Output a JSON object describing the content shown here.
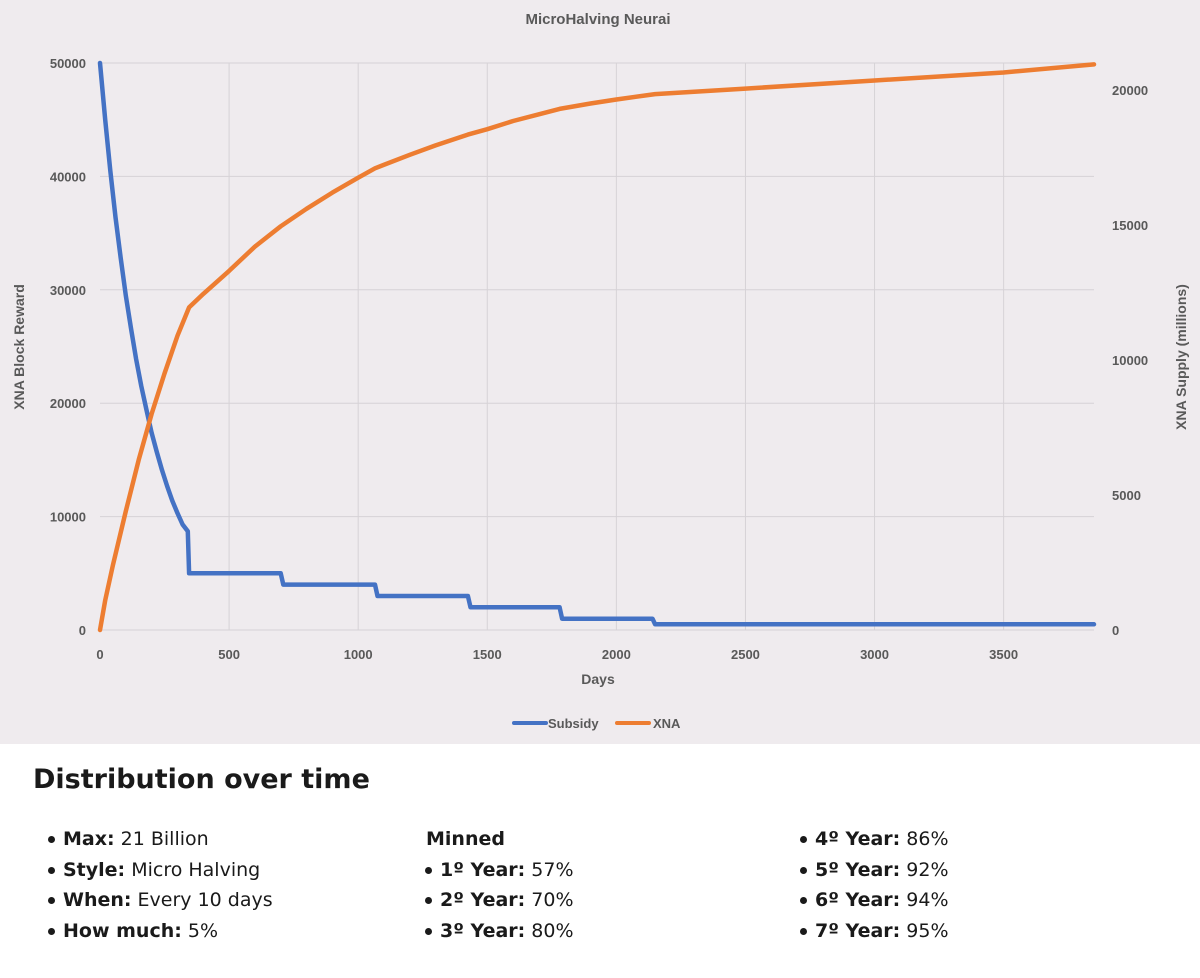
{
  "chart_data": {
    "type": "line",
    "title": "MicroHalving Neurai",
    "xlabel": "Days",
    "ylabel_left": "XNA Block Reward",
    "ylabel_right": "XNA Supply (millions)",
    "xlim": [
      0,
      3850
    ],
    "ylim_left": [
      0,
      50000
    ],
    "ylim_right": [
      0,
      21000
    ],
    "x_ticks": [
      "0",
      "500",
      "1000",
      "1500",
      "2000",
      "2500",
      "3000",
      "3500"
    ],
    "y_ticks_left": [
      "0",
      "10000",
      "20000",
      "30000",
      "40000",
      "50000"
    ],
    "y_ticks_right": [
      "0",
      "5000",
      "10000",
      "15000",
      "20000"
    ],
    "grid": true,
    "legend_position": "bottom",
    "series": [
      {
        "name": "Subsidy",
        "axis": "left",
        "color": "#4472c4",
        "points": [
          [
            0,
            50000
          ],
          [
            20,
            45000
          ],
          [
            40,
            40500
          ],
          [
            60,
            36400
          ],
          [
            80,
            32800
          ],
          [
            100,
            29500
          ],
          [
            120,
            26600
          ],
          [
            140,
            23900
          ],
          [
            160,
            21500
          ],
          [
            180,
            19400
          ],
          [
            200,
            17400
          ],
          [
            220,
            15700
          ],
          [
            240,
            14100
          ],
          [
            260,
            12700
          ],
          [
            280,
            11400
          ],
          [
            300,
            10300
          ],
          [
            320,
            9300
          ],
          [
            340,
            8700
          ],
          [
            345,
            5000
          ],
          [
            700,
            5000
          ],
          [
            710,
            4000
          ],
          [
            1065,
            4000
          ],
          [
            1075,
            3000
          ],
          [
            1425,
            3000
          ],
          [
            1435,
            2000
          ],
          [
            1780,
            2000
          ],
          [
            1790,
            1000
          ],
          [
            2140,
            1000
          ],
          [
            2150,
            500
          ],
          [
            3850,
            500
          ]
        ]
      },
      {
        "name": "XNA",
        "axis": "right",
        "color": "#ed7d31",
        "points": [
          [
            0,
            0
          ],
          [
            20,
            1100
          ],
          [
            50,
            2400
          ],
          [
            100,
            4400
          ],
          [
            150,
            6300
          ],
          [
            200,
            8000
          ],
          [
            250,
            9500
          ],
          [
            300,
            10900
          ],
          [
            345,
            11950
          ],
          [
            400,
            12450
          ],
          [
            500,
            13300
          ],
          [
            600,
            14200
          ],
          [
            700,
            14950
          ],
          [
            800,
            15600
          ],
          [
            900,
            16200
          ],
          [
            1000,
            16750
          ],
          [
            1065,
            17100
          ],
          [
            1200,
            17600
          ],
          [
            1300,
            17950
          ],
          [
            1425,
            18350
          ],
          [
            1500,
            18550
          ],
          [
            1600,
            18850
          ],
          [
            1700,
            19100
          ],
          [
            1780,
            19300
          ],
          [
            1900,
            19500
          ],
          [
            2000,
            19650
          ],
          [
            2150,
            19850
          ],
          [
            2500,
            20050
          ],
          [
            3000,
            20350
          ],
          [
            3500,
            20650
          ],
          [
            3850,
            20950
          ]
        ]
      }
    ]
  },
  "distribution": {
    "title": "Distribution over time",
    "col1": [
      {
        "label": "Max:",
        "value": " 21 Billion"
      },
      {
        "label": "Style:",
        "value": " Micro Halving"
      },
      {
        "label": "When:",
        "value": " Every 10 days"
      },
      {
        "label": "How much:",
        "value": " 5%"
      }
    ],
    "minned_heading": "Minned",
    "col2": [
      {
        "label": "1º Year:",
        "value": " 57%"
      },
      {
        "label": "2º Year:",
        "value": " 70%"
      },
      {
        "label": "3º Year:",
        "value": " 80%"
      }
    ],
    "col3": [
      {
        "label": "4º Year:",
        "value": " 86%"
      },
      {
        "label": "5º Year:",
        "value": " 92%"
      },
      {
        "label": "6º Year:",
        "value": " 94%"
      },
      {
        "label": "7º Year:",
        "value": " 95%"
      }
    ]
  }
}
